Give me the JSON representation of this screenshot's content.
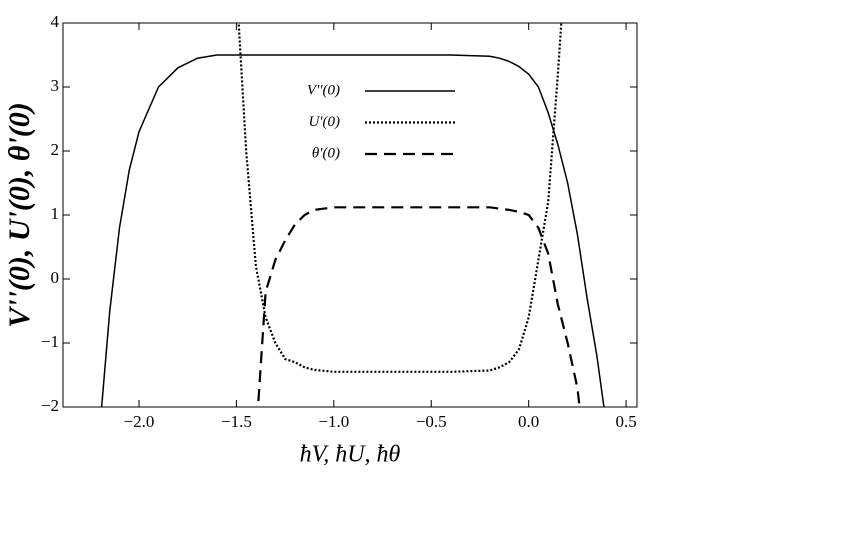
{
  "chart_data": {
    "type": "line",
    "ylabel": "V''(0), U'(0), θ'(0)",
    "xlabel": "ħV, ħU, ħθ",
    "x": [
      -2.2,
      -2.15,
      -2.1,
      -2.05,
      -2.0,
      -1.9,
      -1.8,
      -1.7,
      -1.6,
      -1.5,
      -1.45,
      -1.4,
      -1.35,
      -1.3,
      -1.25,
      -1.2,
      -1.15,
      -1.1,
      -1.0,
      -0.8,
      -0.6,
      -0.4,
      -0.2,
      -0.15,
      -0.1,
      -0.05,
      0,
      0.05,
      0.1,
      0.15,
      0.2,
      0.25,
      0.3,
      0.35,
      0.4
    ],
    "series": [
      {
        "name": "V''(0)",
        "color": "#000000",
        "dash": "solid",
        "values": [
          -2.3,
          -0.5,
          0.8,
          1.7,
          2.3,
          3.0,
          3.3,
          3.45,
          3.5,
          3.5,
          3.5,
          3.5,
          3.5,
          3.5,
          3.5,
          3.5,
          3.5,
          3.5,
          3.5,
          3.5,
          3.5,
          3.5,
          3.48,
          3.45,
          3.4,
          3.32,
          3.2,
          3.0,
          2.6,
          2.1,
          1.5,
          0.7,
          -0.3,
          -1.2,
          -2.3
        ]
      },
      {
        "name": "U'(0)",
        "color": "#000000",
        "dash": "dotted",
        "values": [
          null,
          null,
          null,
          null,
          null,
          null,
          null,
          null,
          null,
          4.6,
          2.0,
          0.2,
          -0.6,
          -1.0,
          -1.25,
          -1.3,
          -1.38,
          -1.42,
          -1.45,
          -1.45,
          -1.45,
          -1.45,
          -1.43,
          -1.38,
          -1.3,
          -1.1,
          -0.6,
          0.3,
          1.2,
          3.2,
          5.5,
          null,
          null,
          null,
          null
        ]
      },
      {
        "name": "θ'(0)",
        "color": "#000000",
        "dash": "dashed",
        "values": [
          null,
          null,
          null,
          null,
          null,
          null,
          null,
          null,
          null,
          null,
          null,
          -2.5,
          -0.2,
          0.3,
          0.6,
          0.85,
          1.0,
          1.08,
          1.12,
          1.12,
          1.12,
          1.12,
          1.12,
          1.1,
          1.08,
          1.05,
          1.0,
          0.8,
          0.4,
          -0.4,
          -1.0,
          -1.7,
          -3.0,
          null,
          null
        ]
      }
    ],
    "xlim": [
      -2.39,
      0.556
    ],
    "ylim": [
      -2,
      4
    ],
    "xticks": [
      {
        "value": -2,
        "label": "−2.0"
      },
      {
        "value": -1.5,
        "label": "−1.5"
      },
      {
        "value": -1,
        "label": "−1.0"
      },
      {
        "value": -0.5,
        "label": "−0.5"
      },
      {
        "value": 0,
        "label": "0.0"
      },
      {
        "value": 0.5,
        "label": "0.5"
      }
    ],
    "yticks": [
      {
        "value": -2,
        "label": "−2"
      },
      {
        "value": -1,
        "label": "−1"
      },
      0,
      1,
      2,
      3,
      4
    ]
  }
}
